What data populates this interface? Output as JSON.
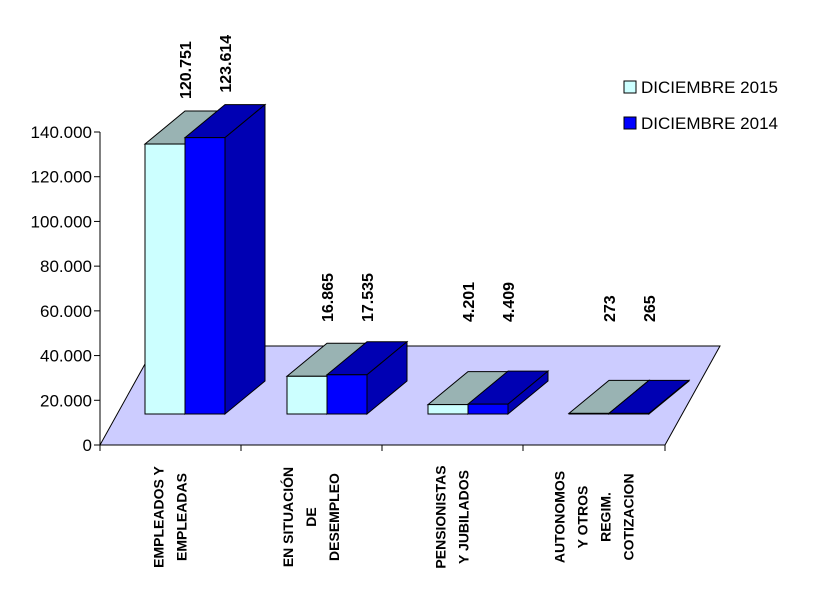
{
  "chart_data": {
    "type": "bar",
    "title": "",
    "xlabel": "",
    "ylabel": "",
    "ylim": [
      0,
      140000
    ],
    "y_ticks": [
      "0",
      "20.000",
      "40.000",
      "60.000",
      "80.000",
      "100.000",
      "120.000",
      "140.000"
    ],
    "categories": [
      [
        "EMPLEADOS Y",
        "EMPLEADAS"
      ],
      [
        "EN SITUACIÓN",
        "DE",
        "DESEMPLEO"
      ],
      [
        "PENSIONISTAS",
        "Y JUBILADOS"
      ],
      [
        "AUTONOMOS",
        "Y OTROS",
        "REGIM.",
        "COTIZACION"
      ]
    ],
    "series": [
      {
        "name": "DICIEMBRE 2015",
        "values": [
          120751,
          16865,
          4201,
          273
        ],
        "labels": [
          "120.751",
          "16.865",
          "4.201",
          "273"
        ],
        "front_color": "#ccffff",
        "top_color": "#99b3b3",
        "side_color": "#99b3b3"
      },
      {
        "name": "DICIEMBRE 2014",
        "values": [
          123614,
          17535,
          4409,
          265
        ],
        "labels": [
          "123.614",
          "17.535",
          "4.409",
          "265"
        ],
        "front_color": "#0000ff",
        "top_color": "#0000b3",
        "side_color": "#0000b3"
      }
    ],
    "floor_color": "#ccccff",
    "legend_position": "top-right",
    "three_d": true
  }
}
